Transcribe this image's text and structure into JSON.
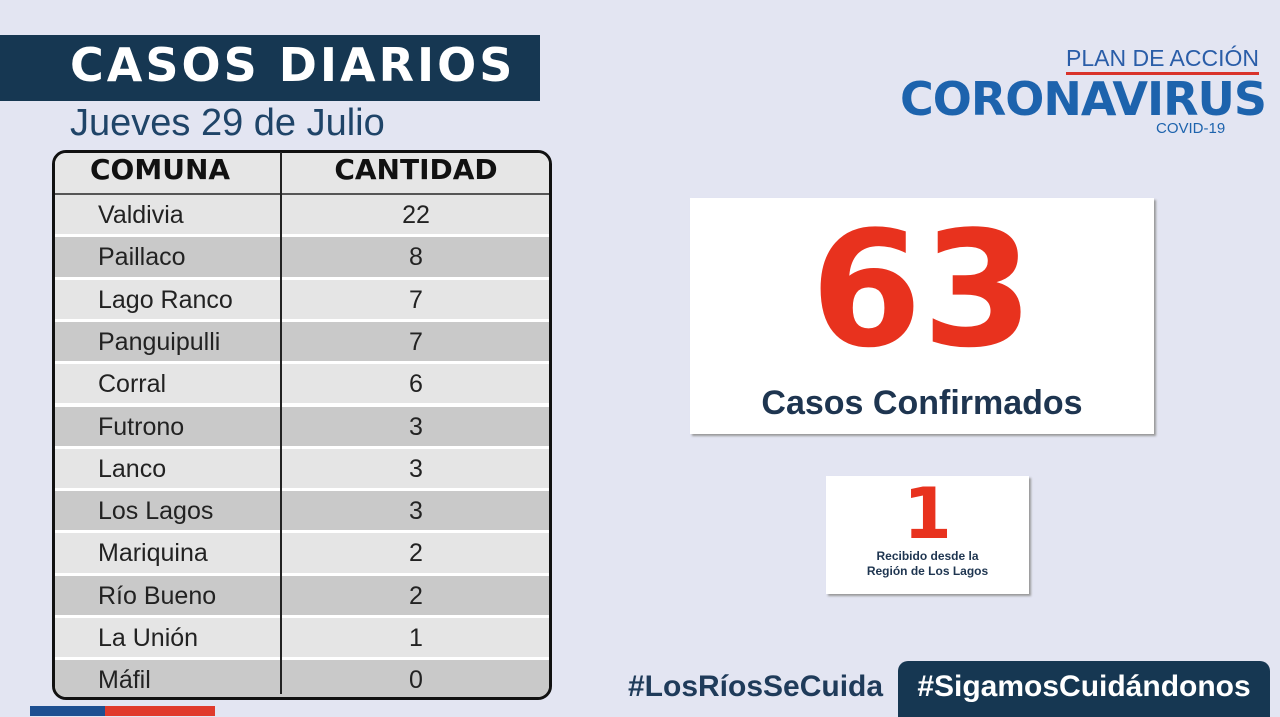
{
  "header": {
    "title": "CASOS DIARIOS",
    "subtitle": "Jueves 29 de Julio"
  },
  "logo": {
    "top": "PLAN DE ACCIÓN",
    "main": "CORONAVIRUS",
    "sub": "COVID-19"
  },
  "table": {
    "columns": [
      "COMUNA",
      "CANTIDAD"
    ],
    "rows": [
      [
        "Valdivia",
        22
      ],
      [
        "Paillaco",
        8
      ],
      [
        "Lago Ranco",
        7
      ],
      [
        "Panguipulli",
        7
      ],
      [
        "Corral",
        6
      ],
      [
        "Futrono",
        3
      ],
      [
        "Lanco",
        3
      ],
      [
        "Los Lagos",
        3
      ],
      [
        "Mariquina",
        2
      ],
      [
        "Río Bueno",
        2
      ],
      [
        "La Unión",
        1
      ],
      [
        "Máfil",
        0
      ]
    ]
  },
  "summary": {
    "total": 63,
    "label": "Casos Confirmados"
  },
  "imported": {
    "count": 1,
    "lines": [
      "Recibido desde la",
      "Región de Los Lagos"
    ]
  },
  "hashtags": [
    "#LosRíosSeCuida",
    "#SigamosCuidándonos"
  ]
}
